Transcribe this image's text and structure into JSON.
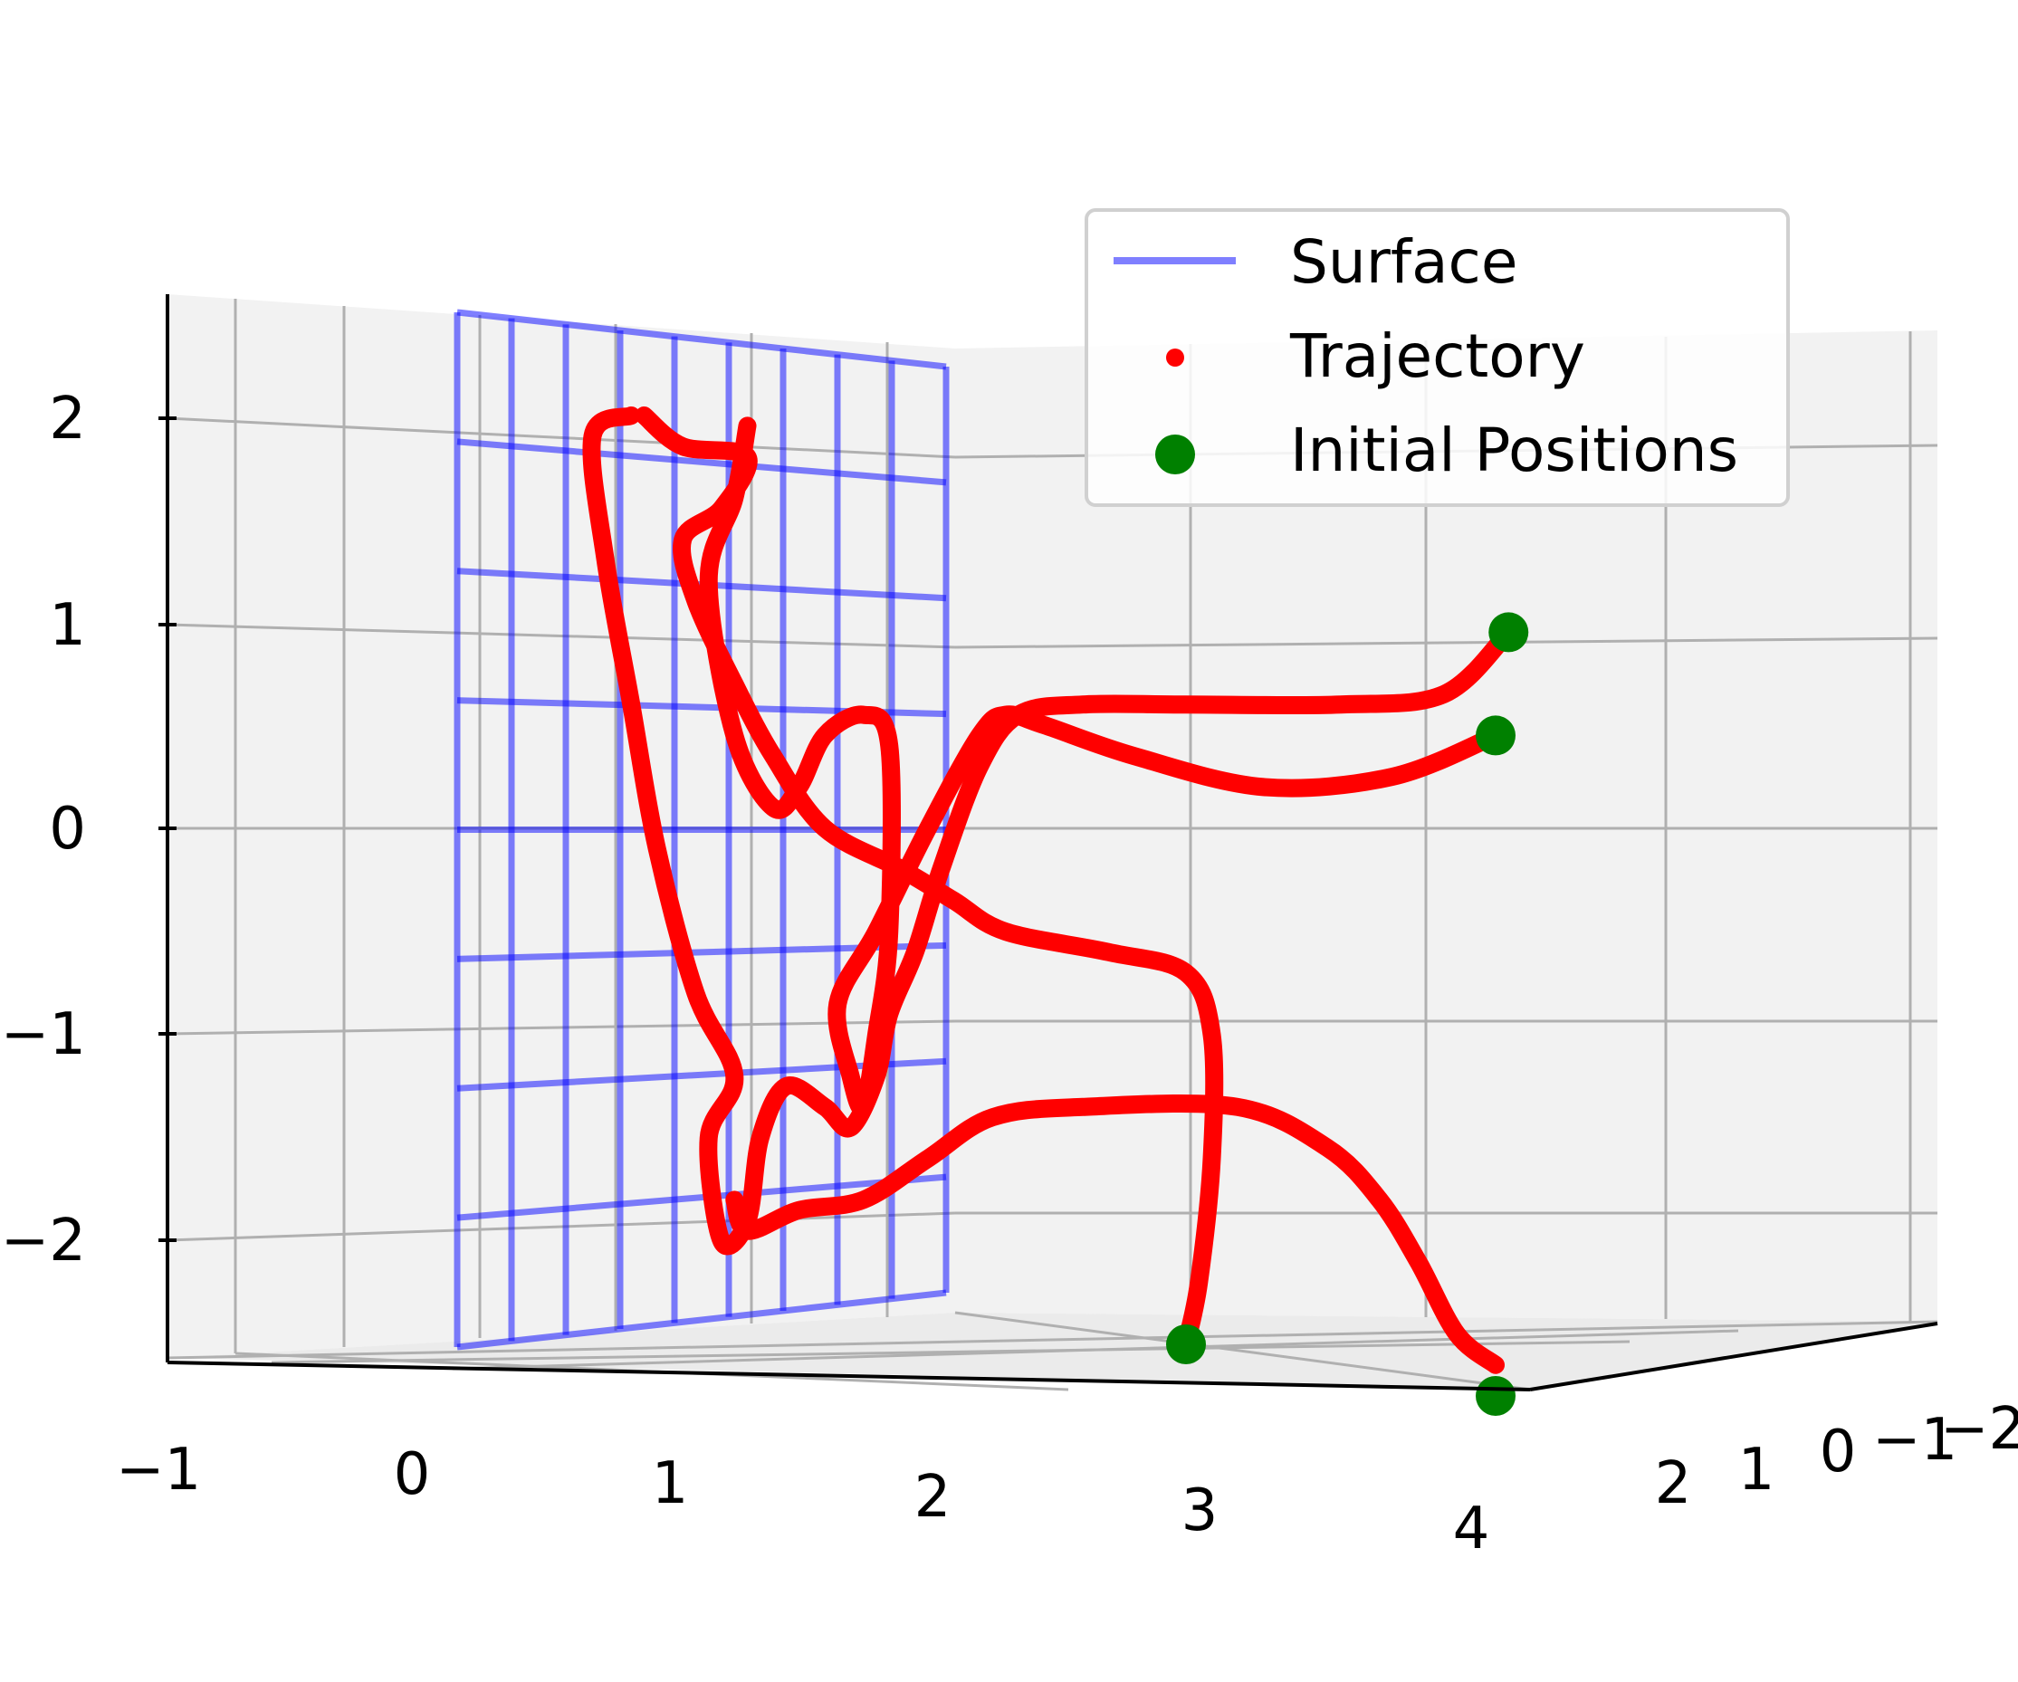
{
  "chart_data": {
    "type": "scatter",
    "projection": "3d",
    "title": "",
    "xlabel": "",
    "ylabel": "",
    "zlabel": "",
    "xlim": [
      -1,
      4.2
    ],
    "ylim": [
      -2,
      2.5
    ],
    "zlim": [
      -2.5,
      2.5
    ],
    "x_ticks": [
      "−1",
      "0",
      "1",
      "2",
      "3",
      "4"
    ],
    "y_ticks": [
      "2",
      "1",
      "0",
      "−1",
      "−2"
    ],
    "z_ticks": [
      "2",
      "1",
      "0",
      "−1",
      "−2"
    ],
    "grid": true,
    "legend": {
      "placement": "top-right",
      "entries": [
        "Surface",
        "Trajectory",
        "Initial Positions"
      ]
    },
    "colors": {
      "surface": "#0000ff",
      "trajectory": "#ff0000",
      "initial_positions": "#008000",
      "pane": "#f2f2f2",
      "grid": "#b0b0b0"
    },
    "surface": {
      "description_plane": "x = 0.5",
      "y_range": [
        -2,
        2
      ],
      "z_range": [
        -2.5,
        2.3
      ]
    },
    "series": [
      {
        "name": "Trajectory",
        "points_xz": [
          [
            0.9,
            2.0
          ],
          [
            1.05,
            1.85
          ],
          [
            1.3,
            1.8
          ],
          [
            1.2,
            1.55
          ],
          [
            1.05,
            1.4
          ],
          [
            1.1,
            1.1
          ],
          [
            1.25,
            0.7
          ],
          [
            1.4,
            0.35
          ],
          [
            1.6,
            0.0
          ],
          [
            1.9,
            -0.2
          ],
          [
            2.1,
            -0.35
          ],
          [
            2.3,
            -0.5
          ],
          [
            2.7,
            -0.6
          ],
          [
            3.0,
            -0.7
          ],
          [
            3.1,
            -1.0
          ],
          [
            3.1,
            -1.6
          ],
          [
            3.05,
            -2.2
          ],
          [
            3.0,
            -2.5
          ]
        ]
      },
      {
        "name": "Trajectory",
        "points_xz": [
          [
            4.25,
            0.95
          ],
          [
            4.0,
            0.65
          ],
          [
            3.6,
            0.6
          ],
          [
            3.0,
            0.6
          ],
          [
            2.6,
            0.6
          ],
          [
            2.35,
            0.55
          ],
          [
            2.2,
            0.3
          ],
          [
            2.05,
            -0.2
          ],
          [
            1.95,
            -0.6
          ],
          [
            1.85,
            -0.9
          ],
          [
            1.8,
            -1.2
          ],
          [
            1.7,
            -1.45
          ],
          [
            1.6,
            -1.35
          ],
          [
            1.45,
            -1.25
          ],
          [
            1.35,
            -1.5
          ],
          [
            1.3,
            -1.9
          ],
          [
            1.2,
            -2.0
          ],
          [
            1.15,
            -1.5
          ],
          [
            1.25,
            -1.2
          ],
          [
            1.1,
            -0.8
          ],
          [
            0.95,
            -0.1
          ],
          [
            0.85,
            0.6
          ],
          [
            0.75,
            1.3
          ],
          [
            0.7,
            1.9
          ],
          [
            0.85,
            2.0
          ]
        ]
      },
      {
        "name": "Trajectory",
        "points_xz": [
          [
            4.2,
            0.45
          ],
          [
            3.8,
            0.25
          ],
          [
            3.3,
            0.2
          ],
          [
            2.8,
            0.35
          ],
          [
            2.45,
            0.5
          ],
          [
            2.3,
            0.55
          ],
          [
            2.2,
            0.45
          ],
          [
            2.0,
            0.0
          ],
          [
            1.8,
            -0.5
          ],
          [
            1.65,
            -0.85
          ],
          [
            1.7,
            -1.2
          ],
          [
            1.75,
            -1.35
          ],
          [
            1.8,
            -1.0
          ],
          [
            1.85,
            -0.5
          ],
          [
            1.85,
            0.4
          ],
          [
            1.75,
            0.55
          ],
          [
            1.6,
            0.45
          ],
          [
            1.5,
            0.2
          ],
          [
            1.4,
            0.1
          ],
          [
            1.25,
            0.45
          ],
          [
            1.15,
            1.2
          ],
          [
            1.25,
            1.6
          ],
          [
            1.3,
            1.95
          ]
        ]
      },
      {
        "name": "Trajectory",
        "points_xz": [
          [
            4.2,
            -2.6
          ],
          [
            4.05,
            -2.45
          ],
          [
            3.9,
            -2.1
          ],
          [
            3.75,
            -1.8
          ],
          [
            3.55,
            -1.55
          ],
          [
            3.2,
            -1.35
          ],
          [
            2.6,
            -1.35
          ],
          [
            2.25,
            -1.4
          ],
          [
            2.0,
            -1.6
          ],
          [
            1.75,
            -1.8
          ],
          [
            1.5,
            -1.85
          ],
          [
            1.3,
            -1.95
          ],
          [
            1.25,
            -1.8
          ]
        ]
      }
    ],
    "initial_positions_xz": [
      [
        4.25,
        0.95
      ],
      [
        4.2,
        0.45
      ],
      [
        3.0,
        -2.5
      ],
      [
        4.2,
        -2.75
      ]
    ]
  }
}
